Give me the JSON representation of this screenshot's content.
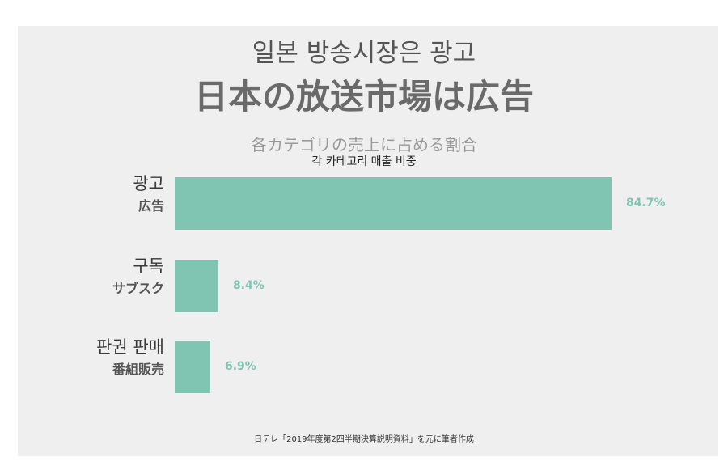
{
  "title_ko": "일본 방송시장은 광고",
  "title_ja": "日本の放送市場は広告",
  "colors": {
    "bar": "#80c4b2",
    "background": "#efefef"
  },
  "chart_data": {
    "type": "bar",
    "orientation": "horizontal",
    "title": "各カテゴリの売上に占める割合",
    "subtitle": "각 카테고리 매출 비중",
    "categories": [
      {
        "ko": "광고",
        "ja": "広告"
      },
      {
        "ko": "구독",
        "ja": "サブスク"
      },
      {
        "ko": "판권 판매",
        "ja": "番組販売"
      }
    ],
    "values": [
      84.7,
      8.4,
      6.9
    ],
    "value_labels": [
      "84.7%",
      "8.4%",
      "6.9%"
    ],
    "unit": "%",
    "grid": false,
    "legend": "none"
  },
  "source": "日テレ「2019年度第2四半期決算説明資料」を元に筆者作成"
}
